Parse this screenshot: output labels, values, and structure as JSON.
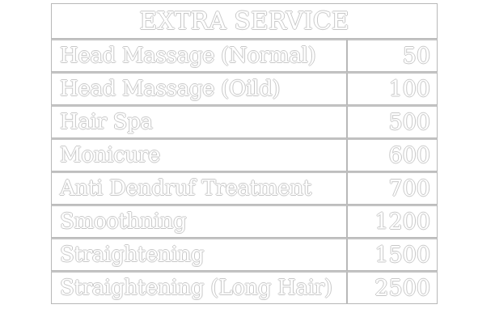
{
  "table": {
    "title": "EXTRA SERVICE",
    "rows": [
      {
        "service": "Head Massage (Normal)",
        "price": "50"
      },
      {
        "service": "Head Massage (Oild)",
        "price": "100"
      },
      {
        "service": "Hair Spa",
        "price": "500"
      },
      {
        "service": "Monicure",
        "price": "600"
      },
      {
        "service": "Anti Dendruf Treatment",
        "price": "700"
      },
      {
        "service": "Smoothning",
        "price": "1200"
      },
      {
        "service": "Straightening",
        "price": "1500"
      },
      {
        "service": "Straightening (Long Hair)",
        "price": "2500"
      }
    ],
    "colors": {
      "text": "#ffffff",
      "outline": "#c8c8c8",
      "border": "#b8b8b8"
    }
  }
}
